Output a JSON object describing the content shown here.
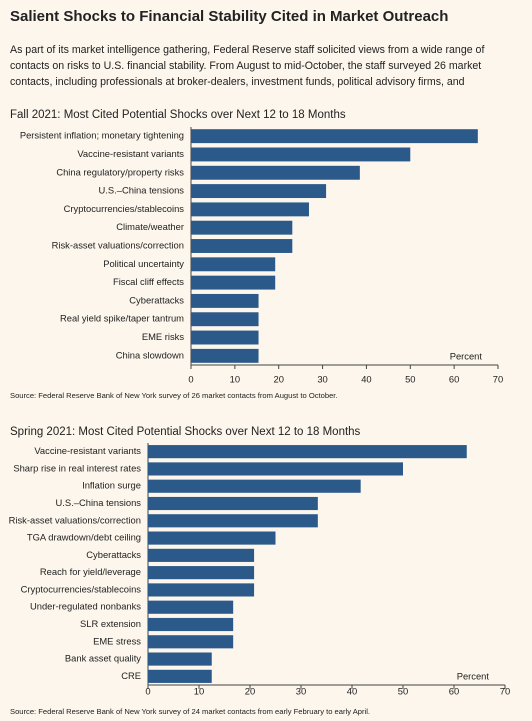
{
  "header": {
    "title": "Salient Shocks to Financial Stability Cited in Market Outreach",
    "lines": [
      "As part of its market intelligence gathering, Federal Reserve staff solicited views from a wide range of",
      "contacts on risks to U.S. financial stability. From August to mid-October, the staff surveyed 26 market",
      "contacts, including professionals at broker-dealers, investment funds, political advisory firms, and"
    ]
  },
  "chart_data": [
    {
      "type": "bar",
      "orientation": "horizontal",
      "title": "Fall 2021: Most Cited Potential Shocks over Next 12 to 18 Months",
      "categories": [
        "Persistent inflation; monetary tightening",
        "Vaccine-resistant variants",
        "China regulatory/property risks",
        "U.S.–China tensions",
        "Cryptocurrencies/stablecoins",
        "Climate/weather",
        "Risk-asset valuations/correction",
        "Political uncertainty",
        "Fiscal cliff effects",
        "Cyberattacks",
        "Real yield spike/taper tantrum",
        "EME risks",
        "China slowdown"
      ],
      "values": [
        65.4,
        50,
        38.5,
        30.8,
        26.9,
        23.1,
        23.1,
        19.2,
        19.2,
        15.4,
        15.4,
        15.4,
        15.4
      ],
      "color": "#2b5a8a",
      "xlim": [
        0,
        70
      ],
      "xticks": [
        0,
        10,
        20,
        30,
        40,
        50,
        60,
        70
      ],
      "xlabel": "Percent",
      "source": "Source: Federal Reserve Bank of New York survey of 26 market contacts from August to October."
    },
    {
      "type": "bar",
      "orientation": "horizontal",
      "title": "Spring 2021: Most Cited Potential Shocks over Next 12 to 18 Months",
      "categories": [
        "Vaccine-resistant variants",
        "Sharp rise in real interest rates",
        "Inflation surge",
        "U.S.–China tensions",
        "Risk-asset valuations/correction",
        "TGA drawdown/debt ceiling",
        "Cyberattacks",
        "Reach for yield/leverage",
        "Cryptocurrencies/stablecoins",
        "Under-regulated nonbanks",
        "SLR extension",
        "EME stress",
        "Bank asset quality",
        "CRE"
      ],
      "values": [
        62.5,
        50,
        41.7,
        33.3,
        33.3,
        25,
        20.8,
        20.8,
        20.8,
        16.7,
        16.7,
        16.7,
        12.5,
        12.5
      ],
      "color": "#2b5a8a",
      "xlim": [
        0,
        70
      ],
      "xticks": [
        0,
        10,
        20,
        30,
        40,
        50,
        60,
        70
      ],
      "xlabel": "Percent",
      "source": "Source: Federal Reserve Bank of New York survey of 24 market contacts from early February to early April."
    }
  ]
}
